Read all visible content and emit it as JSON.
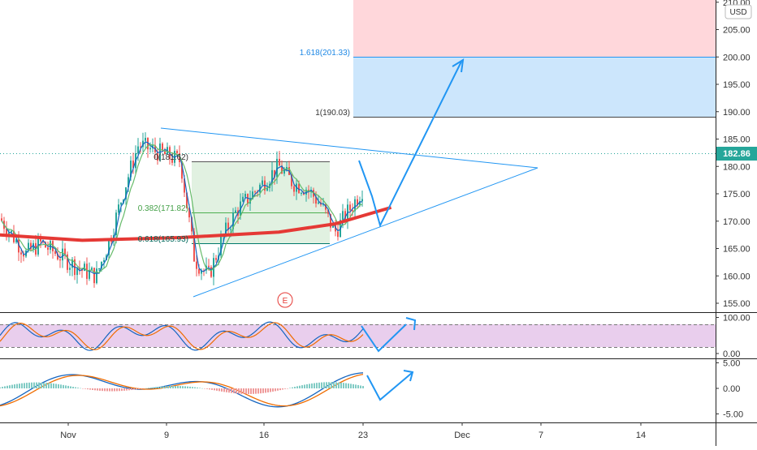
{
  "currency_badge": "USD",
  "current_price_label": "182.86",
  "earnings_marker": "E",
  "annotations": {
    "fib_1618": "1.618(201.33)",
    "fib_1": "1(190.03)",
    "fib_0": "0(181.62)",
    "fib_0382": "0.382(171.82)",
    "fib_0618": "0.618(165.93)"
  },
  "colors": {
    "up_candle": "#26a69a",
    "down_candle": "#ef5350",
    "ma_long": "#e53935",
    "ma_fast": "#1565c0",
    "ma_slow": "#66bb6a",
    "projection": "#2196f3",
    "target_zone": "#bbdefb",
    "risk_zone": "#ffcdd2",
    "stoch_band": "#e1bee7"
  },
  "chart_data": [
    {
      "type": "candlestick",
      "panel": "price",
      "x_tick_labels": [
        "Nov",
        "9",
        "16",
        "23",
        "Dec",
        "7",
        "14"
      ],
      "y_tick_labels": [
        "155.00",
        "160.00",
        "165.00",
        "170.00",
        "175.00",
        "180.00",
        "185.00",
        "190.00",
        "195.00",
        "200.00",
        "205.00",
        "210.00"
      ],
      "ylim": [
        152.5,
        215
      ],
      "close_series_approx": [
        {
          "date": "2020-10-27",
          "close": 171
        },
        {
          "date": "2020-10-29",
          "close": 164
        },
        {
          "date": "2020-10-30",
          "close": 166
        },
        {
          "date": "2020-11-02",
          "close": 161
        },
        {
          "date": "2020-11-03",
          "close": 160
        },
        {
          "date": "2020-11-04",
          "close": 167
        },
        {
          "date": "2020-11-05",
          "close": 176
        },
        {
          "date": "2020-11-06",
          "close": 184
        },
        {
          "date": "2020-11-09",
          "close": 181
        },
        {
          "date": "2020-11-10",
          "close": 163
        },
        {
          "date": "2020-11-11",
          "close": 160
        },
        {
          "date": "2020-11-12",
          "close": 167
        },
        {
          "date": "2020-11-13",
          "close": 172
        },
        {
          "date": "2020-11-16",
          "close": 180
        },
        {
          "date": "2020-11-17",
          "close": 177
        },
        {
          "date": "2020-11-18",
          "close": 176
        },
        {
          "date": "2020-11-19",
          "close": 173
        },
        {
          "date": "2020-11-20",
          "close": 168
        },
        {
          "date": "2020-11-23",
          "close": 180
        },
        {
          "date": "2020-11-24",
          "close": 182.86
        }
      ],
      "moving_average_red": [
        {
          "date": "2020-10-27",
          "value": 167.5
        },
        {
          "date": "2020-11-02",
          "value": 166.5
        },
        {
          "date": "2020-11-09",
          "value": 167
        },
        {
          "date": "2020-11-16",
          "value": 168
        },
        {
          "date": "2020-11-20",
          "value": 169.5
        },
        {
          "date": "2020-11-24",
          "value": 172.5
        }
      ],
      "fibonacci_levels": [
        {
          "label": "1.618(201.33)",
          "value": 201.33
        },
        {
          "label": "1(190.03)",
          "value": 190.03
        },
        {
          "label": "0(181.62)",
          "value": 181.62
        },
        {
          "label": "0.382(171.82)",
          "value": 171.82
        },
        {
          "label": "0.618(165.93)",
          "value": 165.93
        }
      ],
      "triangle": {
        "upper": [
          {
            "date": "2020-11-08",
            "value": 188
          },
          {
            "date": "2020-12-07",
            "value": 180.5
          }
        ],
        "lower": [
          {
            "date": "2020-11-11",
            "value": 156
          },
          {
            "date": "2020-12-07",
            "value": 180.5
          }
        ]
      },
      "projection_path": [
        {
          "date": "2020-11-23",
          "value": 181
        },
        {
          "date": "2020-11-25",
          "value": 173
        },
        {
          "date": "2020-11-26",
          "value": 169.5
        },
        {
          "date": "2020-12-01",
          "value": 201
        }
      ],
      "current_price": 182.86
    },
    {
      "type": "line",
      "panel": "stochastic_rsi",
      "y_tick_labels": [
        "0.00",
        "100.00"
      ],
      "ylim": [
        0,
        100
      ],
      "band": [
        20,
        80
      ]
    },
    {
      "type": "line",
      "panel": "macd",
      "y_tick_labels": [
        "-5.00",
        "0.00",
        "5.00"
      ],
      "ylim": [
        -6,
        5.5
      ]
    }
  ]
}
